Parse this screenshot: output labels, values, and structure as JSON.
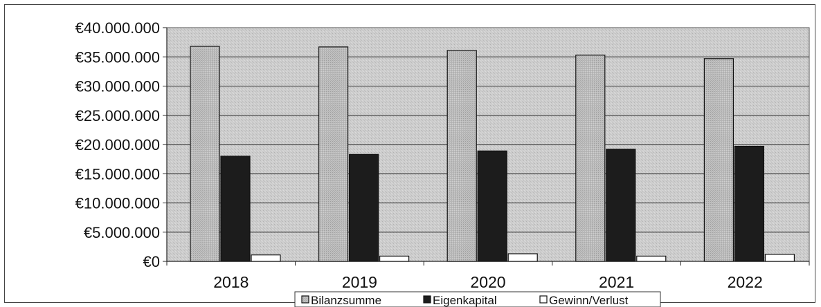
{
  "chart_data": {
    "type": "bar",
    "categories": [
      "2018",
      "2019",
      "2020",
      "2021",
      "2022"
    ],
    "series": [
      {
        "name": "Bilanzsumme",
        "values": [
          36800000,
          36700000,
          36100000,
          35300000,
          34700000
        ],
        "color": "#b8b8b8"
      },
      {
        "name": "Eigenkapital",
        "values": [
          18000000,
          18300000,
          18900000,
          19200000,
          19700000
        ],
        "color": "#1c1c1c"
      },
      {
        "name": "Gewinn/Verlust",
        "values": [
          1100000,
          900000,
          1300000,
          900000,
          1200000
        ],
        "color": "#ffffff"
      }
    ],
    "ylim": [
      0,
      40000000
    ],
    "yticks": [
      0,
      5000000,
      10000000,
      15000000,
      20000000,
      25000000,
      30000000,
      35000000,
      40000000
    ],
    "ytick_labels": [
      "€0",
      "€5.000.000",
      "€10.000.000",
      "€15.000.000",
      "€20.000.000",
      "€25.000.000",
      "€30.000.000",
      "€35.000.000",
      "€40.000.000"
    ],
    "title": "",
    "xlabel": "",
    "ylabel": "",
    "grid": true,
    "legend_position": "bottom",
    "plot_background": "#cfcfcf"
  }
}
